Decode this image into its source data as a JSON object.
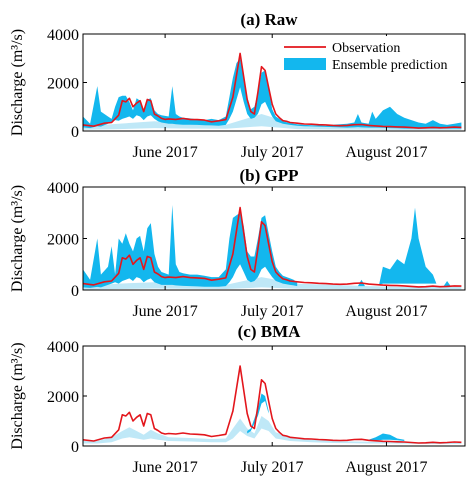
{
  "figure": {
    "legend": {
      "observation": "Observation",
      "ensemble": "Ensemble prediction"
    },
    "colors": {
      "observation": "#e3161c",
      "ensemble": "#13b7ee",
      "ensemble_light": "#bfe8f7"
    }
  },
  "chart_data": [
    {
      "type": "area",
      "title": "(a) Raw",
      "ylabel": "Discharge (m³/s)",
      "ylim": [
        0,
        4000
      ],
      "yticks": [
        0,
        2000,
        4000
      ],
      "xticks": [
        "June 2017",
        "July 2017",
        "August 2017"
      ],
      "x_tick_positions": [
        23,
        53,
        85
      ],
      "xlim": [
        0,
        107
      ],
      "legend_position": "top-right",
      "observation": {
        "x": [
          0,
          3,
          6,
          8,
          10,
          11,
          12,
          13,
          14,
          15,
          16,
          17,
          18,
          19,
          20,
          21,
          22,
          23,
          24,
          26,
          28,
          30,
          32,
          34,
          36,
          38,
          40,
          42,
          44,
          46,
          47,
          48,
          49,
          50,
          51,
          52,
          53,
          54,
          55,
          56,
          57,
          58,
          60,
          62,
          64,
          66,
          68,
          70,
          72,
          74,
          76,
          78,
          80,
          82,
          84,
          86,
          88,
          90,
          92,
          94,
          96,
          98,
          100,
          102,
          104,
          106
        ],
        "y": [
          250,
          200,
          320,
          350,
          650,
          1250,
          1200,
          1350,
          1000,
          1150,
          1250,
          800,
          1300,
          1250,
          700,
          620,
          520,
          480,
          500,
          480,
          520,
          480,
          470,
          450,
          380,
          420,
          470,
          1400,
          3200,
          1300,
          800,
          700,
          1600,
          2650,
          2500,
          1800,
          1100,
          700,
          550,
          430,
          400,
          350,
          320,
          290,
          280,
          260,
          250,
          230,
          220,
          230,
          260,
          270,
          230,
          210,
          190,
          180,
          170,
          160,
          140,
          120,
          130,
          150,
          130,
          140,
          160,
          150
        ]
      },
      "ensemble_bands": [
        {
          "x": [
            0,
            2,
            4,
            5,
            7,
            8,
            9,
            10,
            11,
            12,
            13,
            14,
            15,
            16,
            17,
            18,
            19,
            20,
            21,
            22,
            24,
            25,
            26,
            27,
            28,
            30,
            32,
            34,
            36,
            38,
            40,
            41,
            42,
            43,
            44,
            45,
            46,
            47,
            48,
            49,
            50,
            51,
            52,
            53,
            54,
            56,
            58,
            60,
            62,
            64,
            66,
            68,
            70,
            72,
            74,
            76,
            77,
            78,
            80,
            81,
            82,
            84,
            86,
            88,
            90,
            92,
            94,
            96,
            98,
            100,
            102,
            104,
            106
          ],
          "low": [
            150,
            120,
            200,
            180,
            300,
            350,
            450,
            420,
            500,
            550,
            600,
            500,
            650,
            600,
            450,
            600,
            650,
            500,
            400,
            350,
            300,
            300,
            280,
            270,
            260,
            260,
            250,
            240,
            230,
            220,
            250,
            500,
            800,
            1300,
            1800,
            1200,
            700,
            500,
            550,
            700,
            1100,
            1200,
            900,
            600,
            400,
            300,
            250,
            220,
            200,
            190,
            180,
            170,
            160,
            150,
            140,
            150,
            160,
            150,
            140,
            140,
            140,
            130,
            120,
            110,
            100,
            100,
            100,
            100,
            100,
            100,
            100,
            100,
            100
          ],
          "high": [
            600,
            300,
            1850,
            800,
            600,
            500,
            1000,
            1400,
            1450,
            1450,
            1200,
            850,
            1350,
            1250,
            900,
            1300,
            1350,
            850,
            700,
            650,
            600,
            1850,
            700,
            600,
            550,
            520,
            480,
            450,
            500,
            450,
            600,
            1400,
            2200,
            2800,
            3000,
            2200,
            1400,
            900,
            1000,
            1600,
            2400,
            2500,
            1800,
            900,
            600,
            400,
            320,
            280,
            250,
            240,
            230,
            220,
            260,
            280,
            300,
            350,
            700,
            350,
            300,
            800,
            500,
            850,
            1000,
            700,
            550,
            450,
            350,
            300,
            450,
            300,
            250,
            300,
            350
          ]
        }
      ],
      "light_band": {
        "x": [
          0,
          10,
          20,
          30,
          40,
          50,
          60,
          70,
          80,
          90,
          100,
          106
        ],
        "low": [
          50,
          80,
          120,
          100,
          90,
          200,
          80,
          60,
          50,
          40,
          40,
          40
        ],
        "high": [
          200,
          300,
          400,
          300,
          250,
          700,
          250,
          200,
          180,
          150,
          140,
          150
        ]
      }
    },
    {
      "type": "area",
      "title": "(b) GPP",
      "ylabel": "Discharge (m³/s)",
      "ylim": [
        0,
        4000
      ],
      "yticks": [
        0,
        2000,
        4000
      ],
      "xticks": [
        "June 2017",
        "July 2017",
        "August 2017"
      ],
      "x_tick_positions": [
        23,
        53,
        85
      ],
      "xlim": [
        0,
        107
      ],
      "observation": {
        "x": [
          0,
          3,
          6,
          8,
          10,
          11,
          12,
          13,
          14,
          15,
          16,
          17,
          18,
          19,
          20,
          21,
          22,
          23,
          24,
          26,
          28,
          30,
          32,
          34,
          36,
          38,
          40,
          42,
          44,
          46,
          47,
          48,
          49,
          50,
          51,
          52,
          53,
          54,
          55,
          56,
          57,
          58,
          60,
          62,
          64,
          66,
          68,
          70,
          72,
          74,
          76,
          78,
          80,
          82,
          84,
          86,
          88,
          90,
          92,
          94,
          96,
          98,
          100,
          102,
          104,
          106
        ],
        "y": [
          250,
          200,
          320,
          350,
          650,
          1250,
          1200,
          1350,
          1000,
          1150,
          1250,
          800,
          1300,
          1250,
          700,
          620,
          520,
          480,
          500,
          480,
          520,
          480,
          470,
          450,
          380,
          420,
          470,
          1400,
          3200,
          1300,
          800,
          700,
          1600,
          2650,
          2500,
          1800,
          1100,
          700,
          550,
          430,
          400,
          350,
          320,
          290,
          280,
          260,
          250,
          230,
          220,
          230,
          260,
          270,
          230,
          210,
          190,
          180,
          170,
          160,
          140,
          120,
          130,
          150,
          130,
          140,
          160,
          150
        ]
      },
      "ensemble_bands": [
        {
          "x": [
            0,
            2,
            4,
            5,
            7,
            8,
            9,
            10,
            11,
            12,
            13,
            14,
            15,
            16,
            17,
            18,
            19,
            20,
            21,
            22,
            24,
            25,
            26,
            27,
            28,
            30,
            32,
            34,
            36,
            38,
            40,
            41,
            42,
            43,
            44,
            45,
            46,
            47,
            48,
            49,
            50,
            51,
            52,
            53,
            54,
            55,
            56,
            58,
            59,
            60
          ],
          "low": [
            100,
            80,
            120,
            100,
            200,
            250,
            300,
            250,
            350,
            400,
            450,
            350,
            500,
            450,
            300,
            400,
            450,
            300,
            250,
            200,
            200,
            200,
            180,
            170,
            160,
            150,
            140,
            130,
            130,
            130,
            150,
            300,
            500,
            800,
            1000,
            700,
            400,
            300,
            350,
            500,
            800,
            900,
            700,
            500,
            350,
            300,
            250,
            200,
            180,
            150
          ],
          "high": [
            800,
            400,
            2000,
            600,
            900,
            1700,
            600,
            2000,
            1800,
            2200,
            1800,
            1500,
            2000,
            2100,
            1500,
            2400,
            2600,
            1400,
            900,
            700,
            600,
            3300,
            1000,
            700,
            650,
            600,
            600,
            550,
            500,
            500,
            800,
            2000,
            2800,
            2900,
            3000,
            2500,
            1500,
            1300,
            1300,
            2000,
            2800,
            2900,
            2200,
            1500,
            900,
            700,
            550,
            450,
            400,
            300
          ]
        },
        {
          "x": [
            77,
            78,
            79
          ],
          "low": [
            150,
            150,
            150
          ],
          "high": [
            150,
            400,
            150
          ]
        },
        {
          "x": [
            83,
            84,
            86,
            88,
            90,
            92,
            93,
            94,
            96,
            98,
            99
          ],
          "low": [
            200,
            250,
            250,
            250,
            250,
            250,
            250,
            250,
            250,
            250,
            250
          ],
          "high": [
            250,
            900,
            800,
            1200,
            1000,
            2000,
            3200,
            2000,
            900,
            600,
            250
          ]
        },
        {
          "x": [
            101,
            102,
            103
          ],
          "low": [
            150,
            150,
            150
          ],
          "high": [
            150,
            350,
            150
          ]
        }
      ],
      "light_band": {
        "x": [
          0,
          10,
          20,
          30,
          40,
          50,
          60,
          70,
          80,
          90,
          100,
          106
        ],
        "low": [
          20,
          40,
          60,
          50,
          40,
          100,
          50,
          40,
          30,
          30,
          30,
          30
        ],
        "high": [
          150,
          250,
          300,
          250,
          200,
          500,
          250,
          200,
          150,
          120,
          120,
          130
        ]
      }
    },
    {
      "type": "area",
      "title": "(c) BMA",
      "ylabel": "Discharge (m³/s)",
      "ylim": [
        0,
        4000
      ],
      "yticks": [
        0,
        2000,
        4000
      ],
      "xticks": [
        "June 2017",
        "July 2017",
        "August 2017"
      ],
      "x_tick_positions": [
        23,
        53,
        85
      ],
      "xlim": [
        0,
        107
      ],
      "observation": {
        "x": [
          0,
          3,
          6,
          8,
          10,
          11,
          12,
          13,
          14,
          15,
          16,
          17,
          18,
          19,
          20,
          21,
          22,
          23,
          24,
          26,
          28,
          30,
          32,
          34,
          36,
          38,
          40,
          42,
          44,
          46,
          47,
          48,
          49,
          50,
          51,
          52,
          53,
          54,
          55,
          56,
          57,
          58,
          60,
          62,
          64,
          66,
          68,
          70,
          72,
          74,
          76,
          78,
          80,
          82,
          84,
          86,
          88,
          90,
          92,
          94,
          96,
          98,
          100,
          102,
          104,
          106
        ],
        "y": [
          250,
          200,
          320,
          350,
          650,
          1250,
          1200,
          1350,
          1000,
          1150,
          1250,
          800,
          1300,
          1250,
          700,
          620,
          520,
          480,
          500,
          480,
          520,
          480,
          470,
          450,
          380,
          420,
          470,
          1400,
          3200,
          1300,
          800,
          700,
          1600,
          2650,
          2500,
          1800,
          1100,
          700,
          550,
          430,
          400,
          350,
          320,
          290,
          280,
          260,
          250,
          230,
          220,
          230,
          260,
          270,
          230,
          210,
          190,
          180,
          170,
          160,
          140,
          120,
          130,
          150,
          130,
          140,
          160,
          150
        ]
      },
      "ensemble_bands": [
        {
          "x": [
            46,
            47,
            48,
            49,
            50,
            51,
            52
          ],
          "low": [
            500,
            600,
            900,
            1200,
            1700,
            1800,
            1300
          ],
          "high": [
            600,
            700,
            1100,
            1500,
            2100,
            2000,
            1400
          ]
        },
        {
          "x": [
            80,
            82,
            84,
            86,
            88,
            90
          ],
          "low": [
            200,
            220,
            250,
            250,
            230,
            200
          ],
          "high": [
            250,
            350,
            500,
            450,
            300,
            250
          ]
        }
      ],
      "light_band": {
        "x": [
          0,
          4,
          8,
          11,
          13,
          15,
          17,
          19,
          21,
          24,
          30,
          36,
          40,
          42,
          44,
          46,
          48,
          50,
          52,
          54,
          58,
          64,
          70,
          76,
          80,
          86,
          92,
          98,
          104,
          106
        ],
        "low": [
          100,
          100,
          150,
          300,
          350,
          300,
          250,
          300,
          250,
          200,
          180,
          150,
          150,
          300,
          600,
          400,
          300,
          700,
          600,
          300,
          200,
          150,
          120,
          110,
          100,
          100,
          90,
          80,
          80,
          80
        ],
        "high": [
          200,
          200,
          350,
          600,
          750,
          600,
          450,
          650,
          500,
          350,
          320,
          280,
          300,
          700,
          1100,
          700,
          500,
          1200,
          1000,
          550,
          350,
          250,
          200,
          180,
          170,
          160,
          140,
          120,
          120,
          120
        ]
      }
    }
  ]
}
